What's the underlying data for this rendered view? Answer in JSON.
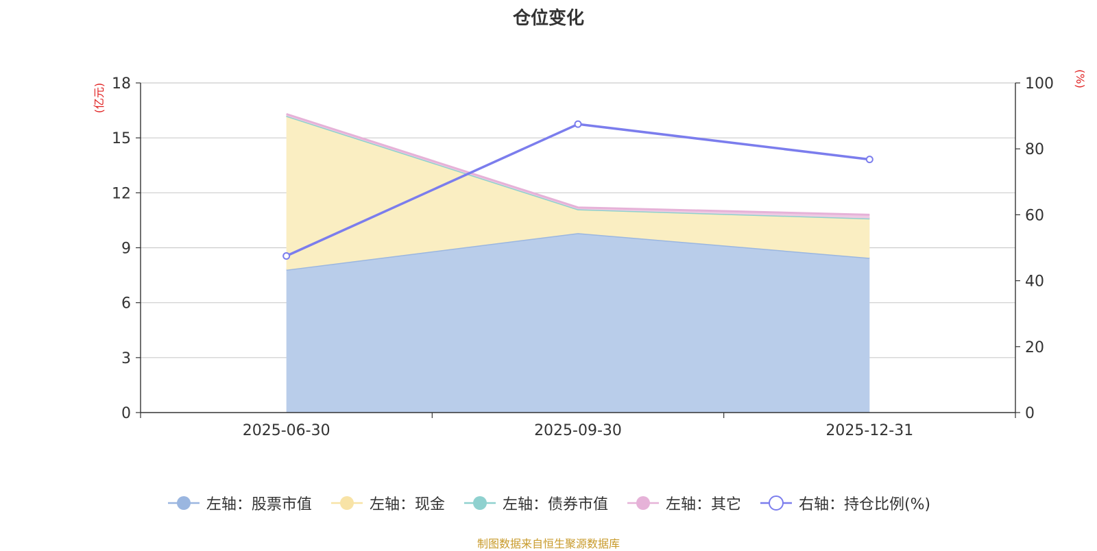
{
  "chart_data": {
    "type": "area",
    "title": "仓位变化",
    "categories": [
      "2025-06-30",
      "2025-09-30",
      "2025-12-31"
    ],
    "y_left": {
      "unit": "(亿元)",
      "min": 0,
      "max": 18,
      "ticks": [
        "0",
        "3",
        "6",
        "9",
        "12",
        "15",
        "18"
      ]
    },
    "y_right": {
      "unit": "(%)",
      "min": 0,
      "max": 100,
      "ticks": [
        "0",
        "20",
        "40",
        "60",
        "80",
        "100"
      ]
    },
    "stacked_series": [
      {
        "name": "左轴：股票市值",
        "values": [
          7.8,
          9.8,
          8.45
        ],
        "color": "#9ab6e0",
        "fill": "#b9cdea"
      },
      {
        "name": "左轴：现金",
        "values": [
          8.4,
          1.3,
          2.15
        ],
        "color": "#f8e3a6",
        "fill": "#faeec2"
      },
      {
        "name": "左轴：债券市值",
        "values": [
          0,
          0,
          0
        ],
        "color": "#8fd1cf",
        "fill": "#bfe3e2"
      },
      {
        "name": "左轴：其它",
        "values": [
          0.1,
          0.1,
          0.2
        ],
        "color": "#e6b2d8",
        "fill": "#eecbe3"
      }
    ],
    "line_series": {
      "name": "右轴：持仓比例(%)",
      "values": [
        47.5,
        87.5,
        76.8
      ],
      "color": "#7b7ded"
    },
    "grid": true,
    "legend_position": "bottom"
  },
  "source_note": "制图数据来自恒生聚源数据库"
}
